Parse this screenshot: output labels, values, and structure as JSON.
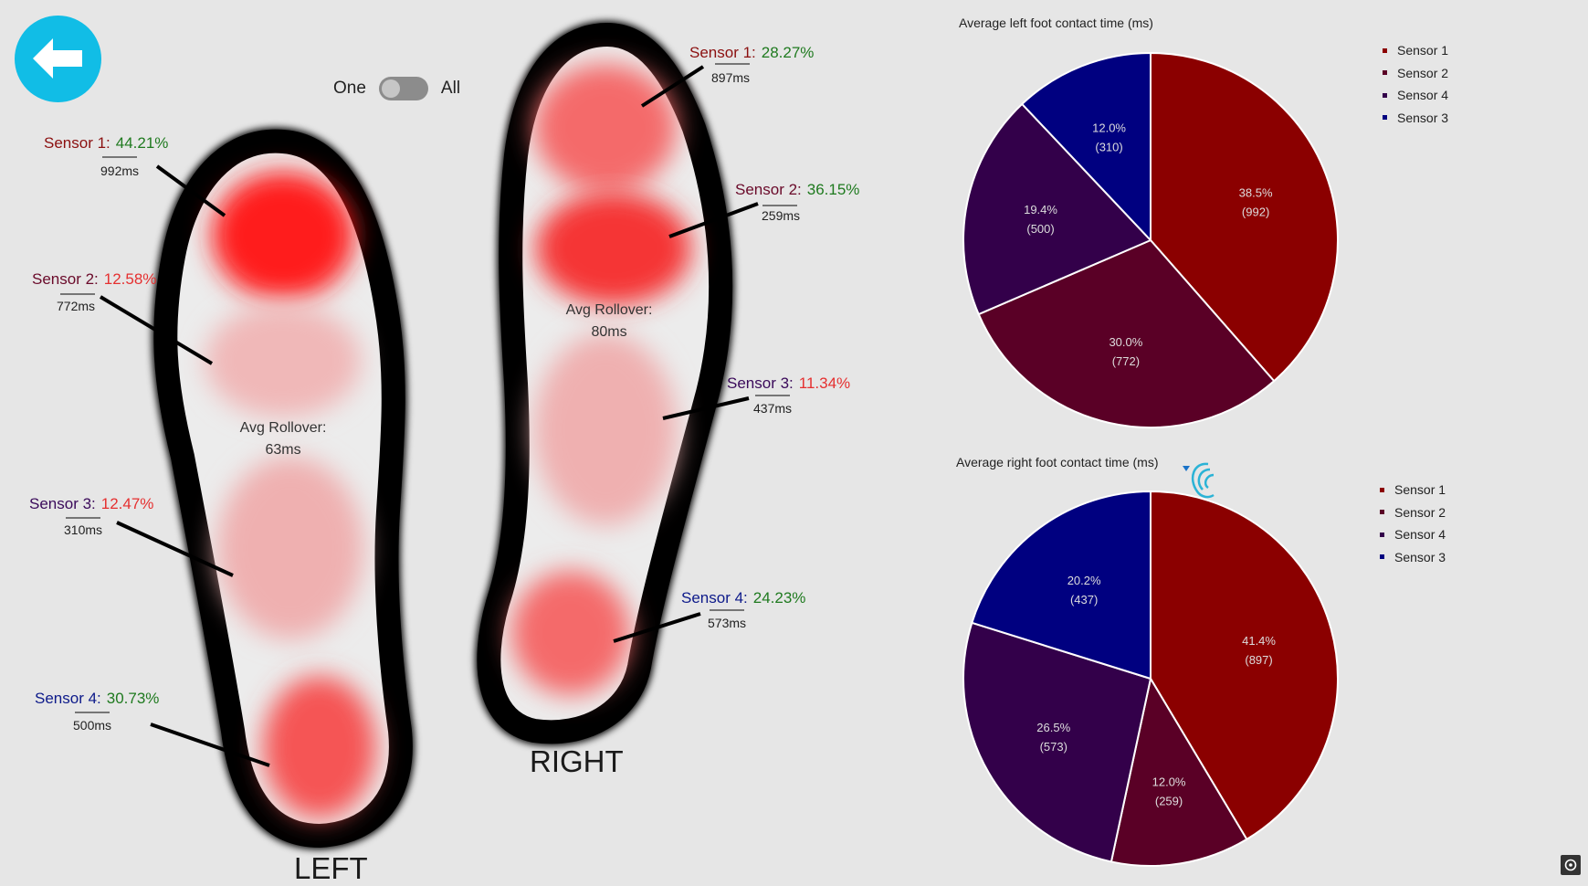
{
  "colors": {
    "accent": "#11bde6",
    "red_text": "#8b1010",
    "green_text": "#1f7a1f",
    "alert_text": "#e53030",
    "sensor1": "#8b0000",
    "sensor2": "#5a0026",
    "sensor4": "#33004a",
    "sensor3": "#000080"
  },
  "toggle": {
    "left_label": "One",
    "right_label": "All",
    "state": "One"
  },
  "left_foot": {
    "label": "LEFT",
    "rollover_label": "Avg Rollover:",
    "rollover_value": "63ms",
    "sensors": [
      {
        "name": "Sensor 1:",
        "pct": "44.21%",
        "ms": "992ms"
      },
      {
        "name": "Sensor 2:",
        "pct": "12.58%",
        "ms": "772ms"
      },
      {
        "name": "Sensor 3:",
        "pct": "12.47%",
        "ms": "310ms"
      },
      {
        "name": "Sensor 4:",
        "pct": "30.73%",
        "ms": "500ms"
      }
    ]
  },
  "right_foot": {
    "label": "RIGHT",
    "rollover_label": "Avg Rollover:",
    "rollover_value": "80ms",
    "sensors": [
      {
        "name": "Sensor 1:",
        "pct": "28.27%",
        "ms": "897ms"
      },
      {
        "name": "Sensor 2:",
        "pct": "36.15%",
        "ms": "259ms"
      },
      {
        "name": "Sensor 3:",
        "pct": "11.34%",
        "ms": "437ms"
      },
      {
        "name": "Sensor 4:",
        "pct": "24.23%",
        "ms": "573ms"
      }
    ]
  },
  "chart_data": [
    {
      "type": "pie",
      "title": "Average left foot contact time (ms)",
      "legend_position": "right",
      "categories": [
        "Sensor 1",
        "Sensor 2",
        "Sensor 4",
        "Sensor 3"
      ],
      "values": [
        992,
        772,
        500,
        310
      ],
      "percent_labels": [
        "38.5%",
        "30.0%",
        "19.4%",
        "12.0%"
      ],
      "value_labels": [
        "(992)",
        "(772)",
        "(500)",
        "(310)"
      ],
      "colors": [
        "#8b0000",
        "#5a0026",
        "#33004a",
        "#000080"
      ]
    },
    {
      "type": "pie",
      "title": "Average right foot contact time (ms)",
      "legend_position": "right",
      "categories": [
        "Sensor 1",
        "Sensor 2",
        "Sensor 4",
        "Sensor 3"
      ],
      "values": [
        897,
        259,
        573,
        437
      ],
      "percent_labels": [
        "41.4%",
        "12.0%",
        "26.5%",
        "20.2%"
      ],
      "value_labels": [
        "(897)",
        "(259)",
        "(573)",
        "(437)"
      ],
      "colors": [
        "#8b0000",
        "#5a0026",
        "#33004a",
        "#000080"
      ]
    }
  ]
}
